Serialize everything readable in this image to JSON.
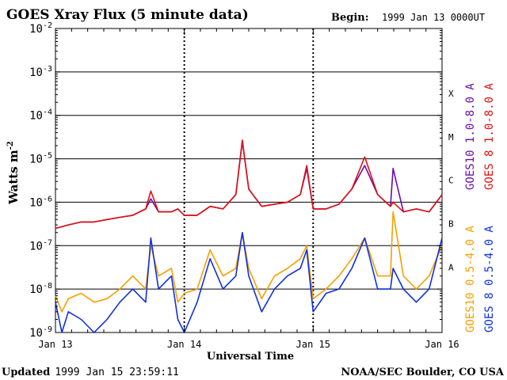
{
  "chart_data": {
    "type": "line",
    "title": "GOES Xray Flux (5 minute data)",
    "begin_label": "Begin:",
    "begin_value": "1999 Jan 13 0000UT",
    "ylabel_main": "Watts m",
    "ylabel_sup": "-2",
    "xlabel": "Universal Time",
    "yscale": "log",
    "ylim": [
      1e-09,
      0.01
    ],
    "xlim": [
      0,
      3
    ],
    "ytick_base": "10",
    "yticks": [
      {
        "value": 0.01,
        "exp": "-2"
      },
      {
        "value": 0.001,
        "exp": "-3"
      },
      {
        "value": 0.0001,
        "exp": "-4"
      },
      {
        "value": 1e-05,
        "exp": "-5"
      },
      {
        "value": 1e-06,
        "exp": "-6"
      },
      {
        "value": 1e-07,
        "exp": "-7"
      },
      {
        "value": 1e-08,
        "exp": "-8"
      },
      {
        "value": 1e-09,
        "exp": "-9"
      }
    ],
    "xticks": [
      {
        "value": 0,
        "label": "Jan 13"
      },
      {
        "value": 1,
        "label": "Jan 14"
      },
      {
        "value": 2,
        "label": "Jan 15"
      },
      {
        "value": 3,
        "label": "Jan 16"
      }
    ],
    "flare_classes": [
      {
        "label": "X",
        "value": 0.00032
      },
      {
        "label": "M",
        "value": 3.2e-05
      },
      {
        "label": "C",
        "value": 3.2e-06
      },
      {
        "label": "B",
        "value": 3.2e-07
      },
      {
        "label": "A",
        "value": 3.2e-08
      }
    ],
    "grid_levels": [
      0.001,
      0.0001,
      1e-05,
      1e-06,
      1e-07,
      1e-08
    ],
    "series": [
      {
        "name": "GOES10 1.0-8.0 A",
        "color": "#6a0dad",
        "x": [
          0.0,
          0.1,
          0.2,
          0.3,
          0.4,
          0.5,
          0.6,
          0.7,
          0.74,
          0.8,
          0.9,
          0.95,
          1.0,
          1.1,
          1.2,
          1.3,
          1.4,
          1.45,
          1.5,
          1.6,
          1.7,
          1.8,
          1.9,
          1.95,
          2.0,
          2.1,
          2.2,
          2.3,
          2.4,
          2.5,
          2.6,
          2.62,
          2.7,
          2.8,
          2.9,
          3.0
        ],
        "y": [
          2.5e-07,
          3e-07,
          3.5e-07,
          3.5e-07,
          4e-07,
          4.5e-07,
          5e-07,
          7e-07,
          1.2e-06,
          6e-07,
          6e-07,
          7e-07,
          5e-07,
          5e-07,
          8e-07,
          7e-07,
          1.5e-06,
          2.5e-05,
          2e-06,
          8e-07,
          9e-07,
          1e-06,
          1.5e-06,
          6e-06,
          7e-07,
          7e-07,
          9e-07,
          2e-06,
          7e-06,
          1.5e-06,
          8e-07,
          6e-06,
          6e-07,
          7e-07,
          6e-07,
          1.5e-06
        ]
      },
      {
        "name": "GOES 8 1.0-8.0 A",
        "color": "#e01010",
        "x": [
          0.0,
          0.1,
          0.2,
          0.3,
          0.4,
          0.5,
          0.6,
          0.7,
          0.74,
          0.8,
          0.9,
          0.95,
          1.0,
          1.1,
          1.2,
          1.3,
          1.4,
          1.45,
          1.5,
          1.6,
          1.7,
          1.8,
          1.9,
          1.95,
          2.0,
          2.1,
          2.2,
          2.3,
          2.4,
          2.5,
          2.6,
          2.62,
          2.7,
          2.8,
          2.9,
          3.0
        ],
        "y": [
          2.5e-07,
          3e-07,
          3.5e-07,
          3.5e-07,
          4e-07,
          4.5e-07,
          5e-07,
          7e-07,
          1.8e-06,
          6e-07,
          6e-07,
          7e-07,
          5e-07,
          5e-07,
          8e-07,
          7e-07,
          1.5e-06,
          2.7e-05,
          2e-06,
          8e-07,
          9e-07,
          1e-06,
          1.5e-06,
          7e-06,
          7e-07,
          7e-07,
          9e-07,
          2e-06,
          1.1e-05,
          1.5e-06,
          8e-07,
          1e-06,
          6e-07,
          7e-07,
          6e-07,
          1.5e-06
        ]
      },
      {
        "name": "GOES10 0.5-4.0 A",
        "color": "#f5a000",
        "x": [
          0.0,
          0.05,
          0.1,
          0.2,
          0.3,
          0.4,
          0.5,
          0.6,
          0.7,
          0.74,
          0.8,
          0.9,
          0.95,
          1.0,
          1.1,
          1.2,
          1.3,
          1.4,
          1.45,
          1.5,
          1.6,
          1.7,
          1.8,
          1.9,
          1.95,
          2.0,
          2.1,
          2.2,
          2.3,
          2.4,
          2.5,
          2.6,
          2.62,
          2.7,
          2.8,
          2.9,
          3.0
        ],
        "y": [
          7e-09,
          3e-09,
          6e-09,
          8e-09,
          5e-09,
          6e-09,
          1e-08,
          2e-08,
          1e-08,
          1e-07,
          2e-08,
          3e-08,
          5e-09,
          8e-09,
          1e-08,
          8e-08,
          2e-08,
          3e-08,
          2e-07,
          3e-08,
          6e-09,
          2e-08,
          3e-08,
          5e-08,
          1e-07,
          6e-09,
          1e-08,
          2e-08,
          5e-08,
          1.5e-07,
          2e-08,
          2e-08,
          6e-07,
          2e-08,
          1e-08,
          2e-08,
          1e-07
        ]
      },
      {
        "name": "GOES 8 0.5-4.0 A",
        "color": "#1030e0",
        "x": [
          0.0,
          0.05,
          0.1,
          0.2,
          0.3,
          0.4,
          0.5,
          0.6,
          0.7,
          0.74,
          0.8,
          0.9,
          0.95,
          1.0,
          1.1,
          1.2,
          1.3,
          1.4,
          1.45,
          1.5,
          1.6,
          1.7,
          1.8,
          1.9,
          1.95,
          2.0,
          2.1,
          2.2,
          2.3,
          2.4,
          2.5,
          2.6,
          2.62,
          2.7,
          2.8,
          2.9,
          3.0
        ],
        "y": [
          5e-09,
          1e-09,
          3e-09,
          2e-09,
          1e-09,
          2e-09,
          5e-09,
          1e-08,
          5e-09,
          1.5e-07,
          1e-08,
          2e-08,
          2e-09,
          1e-09,
          5e-09,
          5e-08,
          1e-08,
          2e-08,
          2e-07,
          2e-08,
          3e-09,
          1e-08,
          2e-08,
          3e-08,
          8e-08,
          3e-09,
          8e-09,
          1e-08,
          3e-08,
          1.5e-07,
          1e-08,
          1e-08,
          3e-08,
          1e-08,
          5e-09,
          1e-08,
          1.5e-07
        ]
      }
    ]
  },
  "footer": {
    "updated_label": "Updated",
    "updated_value": "1999 Jan 15 23:59:11",
    "credit": "NOAA/SEC Boulder, CO USA"
  }
}
